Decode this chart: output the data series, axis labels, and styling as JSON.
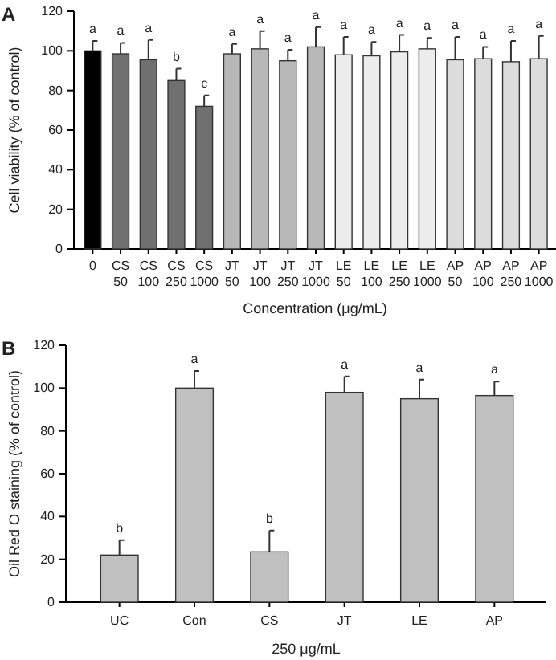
{
  "chart_data": [
    {
      "type": "bar",
      "title": "A",
      "xlabel": "Concentration (μg/mL)",
      "ylabel": "Cell viability (% of control)",
      "categories": [
        "0",
        "CS 50",
        "CS 100",
        "CS 250",
        "CS 1000",
        "JT 50",
        "JT 100",
        "JT 250",
        "JT 1000",
        "LE 50",
        "LE 100",
        "LE 250",
        "LE 1000",
        "AP 50",
        "AP 100",
        "AP 250",
        "AP 1000"
      ],
      "values": [
        100,
        98.5,
        95.5,
        85,
        72,
        98.5,
        101,
        95,
        102,
        98,
        97.5,
        99.5,
        101,
        95.5,
        96,
        94.5,
        96
      ],
      "errors": [
        [
          100,
          105
        ],
        [
          98.5,
          104
        ],
        [
          95.5,
          105.5
        ],
        [
          85,
          91
        ],
        [
          72,
          77.5
        ],
        [
          98.5,
          103.5
        ],
        [
          101,
          110
        ],
        [
          95,
          100.5
        ],
        [
          102,
          112
        ],
        [
          98,
          107
        ],
        [
          97.5,
          104.5
        ],
        [
          99.5,
          108
        ],
        [
          101,
          106.5
        ],
        [
          95.5,
          107
        ],
        [
          96,
          102
        ],
        [
          94.5,
          105
        ],
        [
          96,
          107.5
        ]
      ],
      "colors": [
        "#000000",
        "#707070",
        "#707070",
        "#707070",
        "#707070",
        "#b8b8b8",
        "#b8b8b8",
        "#b8b8b8",
        "#b8b8b8",
        "#ececec",
        "#ececec",
        "#ececec",
        "#ececec",
        "#dcdcdc",
        "#dcdcdc",
        "#dcdcdc",
        "#dcdcdc"
      ],
      "annotations": [
        {
          "text": "a",
          "x": "0",
          "y": 105
        },
        {
          "text": "a",
          "x": "CS 50",
          "y": 104
        },
        {
          "text": "a",
          "x": "CS 100",
          "y": 105.5
        },
        {
          "text": "b",
          "x": "CS 250",
          "y": 91
        },
        {
          "text": "c",
          "x": "CS 1000",
          "y": 77.5
        },
        {
          "text": "a",
          "x": "JT 50",
          "y": 103.5
        },
        {
          "text": "a",
          "x": "JT 100",
          "y": 110
        },
        {
          "text": "a",
          "x": "JT 250",
          "y": 100.5
        },
        {
          "text": "a",
          "x": "JT 1000",
          "y": 112
        },
        {
          "text": "a",
          "x": "LE 50",
          "y": 107
        },
        {
          "text": "a",
          "x": "LE 100",
          "y": 104.5
        },
        {
          "text": "a",
          "x": "LE 250",
          "y": 108
        },
        {
          "text": "a",
          "x": "LE 1000",
          "y": 106.5
        },
        {
          "text": "a",
          "x": "AP 50",
          "y": 107
        },
        {
          "text": "a",
          "x": "AP 100",
          "y": 102
        },
        {
          "text": "a",
          "x": "AP 250",
          "y": 105
        },
        {
          "text": "a",
          "x": "AP 1000",
          "y": 107.5
        }
      ],
      "ylim": [
        0,
        120
      ],
      "yticks": [
        0,
        20,
        40,
        60,
        80,
        100,
        120
      ],
      "grid": false
    },
    {
      "type": "bar",
      "title": "B",
      "xlabel": "250 μg/mL",
      "ylabel": "Oil Red O staining (% of control)",
      "categories": [
        "UC",
        "Con",
        "CS",
        "JT",
        "LE",
        "AP"
      ],
      "values": [
        22,
        100,
        23.5,
        98,
        95,
        96.5
      ],
      "errors": [
        [
          22,
          29
        ],
        [
          100,
          108
        ],
        [
          23.5,
          33.5
        ],
        [
          98,
          105.5
        ],
        [
          95,
          104
        ],
        [
          96.5,
          103
        ]
      ],
      "colors": [
        "#c0c0c0",
        "#c0c0c0",
        "#c0c0c0",
        "#c0c0c0",
        "#c0c0c0",
        "#c0c0c0"
      ],
      "annotations": [
        {
          "text": "b",
          "x": "UC",
          "y": 29
        },
        {
          "text": "a",
          "x": "Con",
          "y": 108
        },
        {
          "text": "b",
          "x": "CS",
          "y": 33.5
        },
        {
          "text": "a",
          "x": "JT",
          "y": 105.5
        },
        {
          "text": "a",
          "x": "LE",
          "y": 104
        },
        {
          "text": "a",
          "x": "AP",
          "y": 103
        }
      ],
      "ylim": [
        0,
        120
      ],
      "yticks": [
        0,
        20,
        40,
        60,
        80,
        100,
        120
      ],
      "grid": false
    }
  ]
}
